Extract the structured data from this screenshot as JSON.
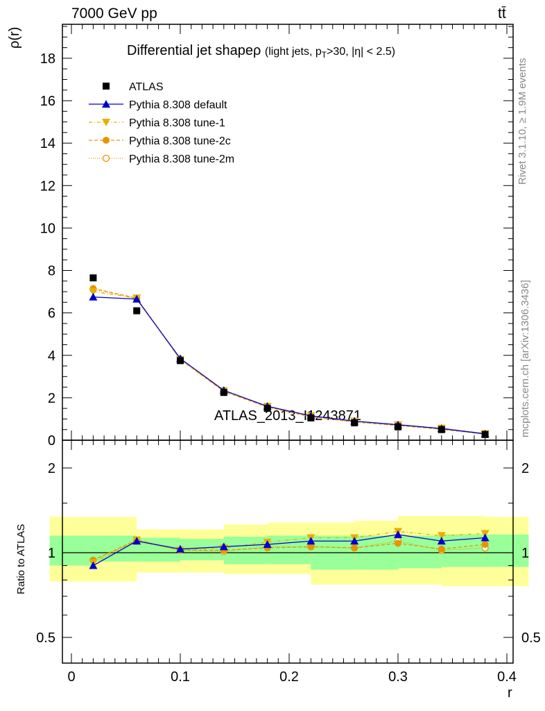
{
  "header": {
    "energy_label": "7000 GeV pp",
    "process_label": "tt̄"
  },
  "side": {
    "rivet_label": "Rivet 3.1.10, ≥ 1.9M events",
    "mcplots_label": "mcplots.cern.ch [arXiv:1306.3436]"
  },
  "watermark": "ATLAS_2013_I1243871",
  "colors": {
    "atlas": "#000000",
    "default": "#0000cc",
    "tune1": "#e6b000",
    "tune2c": "#e69500",
    "tune2m": "#e69500",
    "band_inner": "#99ff99",
    "band_outer": "#ffff99"
  },
  "chart_data": [
    {
      "type": "scatter",
      "title": "Differential jet shape ρ (light jets, p_T >30, |η| < 2.5)",
      "title_main": "Differential jet shape",
      "title_rho": "ρ",
      "title_sub": "(light jets, p",
      "title_sub_T": "T",
      "title_sub_end": ">30, |η| < 2.5)",
      "xlabel": "r",
      "ylabel": "ρ(r)",
      "xlim": [
        0,
        0.4
      ],
      "ylim": [
        0,
        19.6
      ],
      "x_ticks": [
        "0",
        "0.1",
        "0.2",
        "0.3",
        "0.4"
      ],
      "y_ticks": [
        "0",
        "2",
        "4",
        "6",
        "8",
        "10",
        "12",
        "14",
        "16",
        "18"
      ],
      "legend_position": "top-left",
      "x": [
        0.02,
        0.06,
        0.1,
        0.14,
        0.18,
        0.22,
        0.26,
        0.3,
        0.34,
        0.38
      ],
      "series": [
        {
          "name": "ATLAS",
          "values": [
            7.65,
            6.1,
            3.75,
            2.25,
            1.5,
            1.05,
            0.82,
            0.63,
            0.5,
            0.27
          ]
        },
        {
          "name": "Pythia 8.308 default",
          "values": [
            6.75,
            6.65,
            3.85,
            2.35,
            1.6,
            1.15,
            0.9,
            0.73,
            0.55,
            0.3
          ]
        },
        {
          "name": "Pythia 8.308 tune-1",
          "values": [
            7.0,
            6.7,
            3.8,
            2.33,
            1.6,
            1.15,
            0.9,
            0.73,
            0.57,
            0.31
          ]
        },
        {
          "name": "Pythia 8.308 tune-2c",
          "values": [
            7.15,
            6.7,
            3.8,
            2.3,
            1.56,
            1.1,
            0.86,
            0.69,
            0.52,
            0.29
          ]
        },
        {
          "name": "Pythia 8.308 tune-2m",
          "values": [
            7.1,
            6.68,
            3.82,
            2.3,
            1.57,
            1.1,
            0.85,
            0.7,
            0.51,
            0.28
          ]
        }
      ]
    },
    {
      "type": "scatter",
      "xlabel": "r",
      "ylabel": "Ratio to ATLAS",
      "xlim": [
        0,
        0.4
      ],
      "ylim": [
        0.4,
        2.35
      ],
      "log_scale_y": true,
      "y_ticks": [
        "0.5",
        "1",
        "2"
      ],
      "x": [
        0.02,
        0.06,
        0.1,
        0.14,
        0.18,
        0.22,
        0.26,
        0.3,
        0.34,
        0.38
      ],
      "band_inner": [
        [
          0.9,
          1.15
        ],
        [
          0.93,
          1.15
        ],
        [
          0.93,
          1.13
        ],
        [
          0.94,
          1.12
        ],
        [
          0.91,
          1.14
        ],
        [
          0.91,
          1.15
        ],
        [
          0.87,
          1.15
        ],
        [
          0.87,
          1.15
        ],
        [
          0.88,
          1.15
        ],
        [
          0.89,
          1.16
        ]
      ],
      "band_outer": [
        [
          0.79,
          1.34
        ],
        [
          0.86,
          1.2
        ],
        [
          0.85,
          1.21
        ],
        [
          0.87,
          1.21
        ],
        [
          0.84,
          1.26
        ],
        [
          0.85,
          1.28
        ],
        [
          0.77,
          1.27
        ],
        [
          0.77,
          1.3
        ],
        [
          0.78,
          1.35
        ],
        [
          0.76,
          1.34
        ]
      ],
      "series": [
        {
          "name": "Pythia 8.308 default",
          "values": [
            0.9,
            1.1,
            1.03,
            1.05,
            1.07,
            1.1,
            1.1,
            1.16,
            1.1,
            1.13
          ]
        },
        {
          "name": "Pythia 8.308 tune-1",
          "values": [
            0.92,
            1.11,
            1.02,
            1.04,
            1.09,
            1.13,
            1.13,
            1.19,
            1.15,
            1.17
          ]
        },
        {
          "name": "Pythia 8.308 tune-2c",
          "values": [
            0.94,
            1.11,
            1.02,
            1.02,
            1.04,
            1.05,
            1.04,
            1.08,
            1.03,
            1.07
          ]
        },
        {
          "name": "Pythia 8.308 tune-2m",
          "values": [
            0.94,
            1.1,
            1.02,
            1.01,
            1.05,
            1.05,
            1.04,
            1.1,
            1.02,
            1.04
          ]
        }
      ]
    }
  ]
}
